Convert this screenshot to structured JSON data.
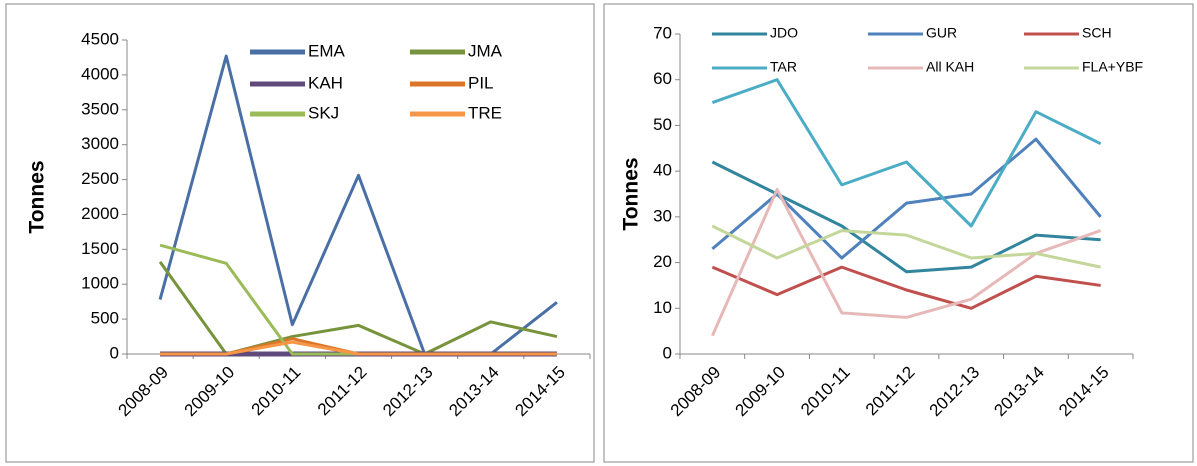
{
  "chart_data": [
    {
      "type": "line",
      "y_label": "Tonnes",
      "categories": [
        "2008-09",
        "2009-10",
        "2010-11",
        "2011-12",
        "2012-13",
        "2013-14",
        "2014-15"
      ],
      "ylim": [
        0,
        4500
      ],
      "yticks": [
        0,
        500,
        1000,
        1500,
        2000,
        2500,
        3000,
        3500,
        4000,
        4500
      ],
      "legend": "upper right",
      "series": [
        {
          "name": "EMA",
          "color": "#4a6fa5",
          "values": [
            780,
            4270,
            420,
            2560,
            0,
            0,
            740
          ]
        },
        {
          "name": "JMA",
          "color": "#77933c",
          "values": [
            1320,
            0,
            250,
            410,
            0,
            460,
            250
          ]
        },
        {
          "name": "KAH",
          "color": "#604a7b",
          "values": [
            0,
            0,
            0,
            0,
            0,
            0,
            0
          ]
        },
        {
          "name": "PIL",
          "color": "#d9762a",
          "values": [
            0,
            0,
            220,
            0,
            0,
            0,
            0
          ]
        },
        {
          "name": "SKJ",
          "color": "#9bbb59",
          "values": [
            1560,
            1300,
            0,
            0,
            0,
            0,
            0
          ]
        },
        {
          "name": "TRE",
          "color": "#f79646",
          "values": [
            0,
            0,
            170,
            0,
            0,
            0,
            0
          ]
        }
      ]
    },
    {
      "type": "line",
      "y_label": "Tonnes",
      "categories": [
        "2008-09",
        "2009-10",
        "2010-11",
        "2011-12",
        "2012-13",
        "2013-14",
        "2014-15"
      ],
      "ylim": [
        0,
        70
      ],
      "yticks": [
        0,
        10,
        20,
        30,
        40,
        50,
        60,
        70
      ],
      "legend": "top",
      "series": [
        {
          "name": "JDO",
          "color": "#31859c",
          "values": [
            42,
            35,
            28,
            18,
            19,
            26,
            25
          ]
        },
        {
          "name": "GUR",
          "color": "#4f81bd",
          "values": [
            23,
            35,
            21,
            33,
            35,
            47,
            30
          ]
        },
        {
          "name": "SCH",
          "color": "#c0504d",
          "values": [
            19,
            13,
            19,
            14,
            10,
            17,
            15
          ]
        },
        {
          "name": "TAR",
          "color": "#4bacc6",
          "values": [
            55,
            60,
            37,
            42,
            28,
            53,
            46
          ]
        },
        {
          "name": "All KAH",
          "color": "#e6b9b8",
          "values": [
            4,
            36,
            9,
            8,
            12,
            22,
            27
          ]
        },
        {
          "name": "FLA+YBF",
          "color": "#c4d79b",
          "values": [
            28,
            21,
            27,
            26,
            21,
            22,
            19
          ]
        }
      ]
    }
  ]
}
